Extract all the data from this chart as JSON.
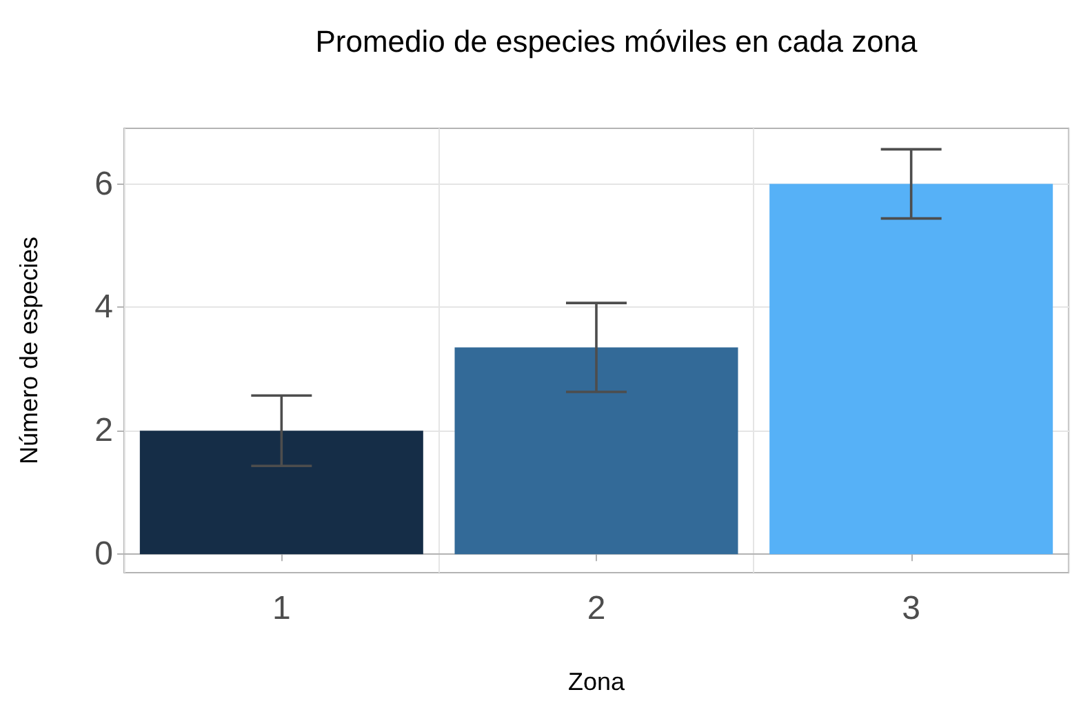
{
  "chart_data": {
    "type": "bar",
    "title": "Promedio de especies móviles en cada zona",
    "xlabel": "Zona",
    "ylabel": "Número de especies",
    "categories": [
      "1",
      "2",
      "3"
    ],
    "values": [
      2.0,
      3.35,
      6.0
    ],
    "colors": [
      "#152d47",
      "#336a98",
      "#56b1f7"
    ],
    "errors": [
      0.57,
      0.72,
      0.56
    ],
    "ylim": [
      -0.3,
      6.9
    ],
    "yticks": [
      0,
      2,
      4,
      6
    ],
    "grid": true
  }
}
